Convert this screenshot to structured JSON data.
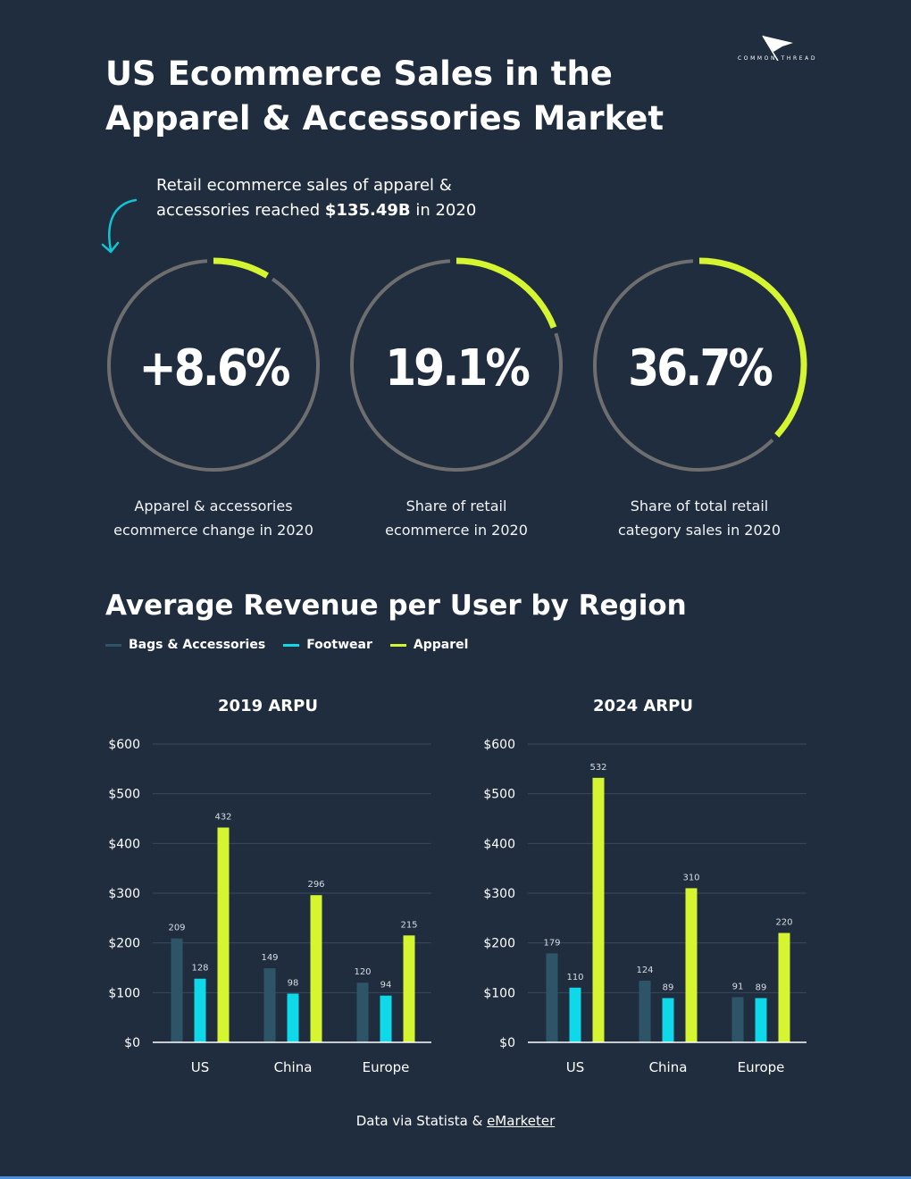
{
  "logo": {
    "text": "COMMON THREAD"
  },
  "title": {
    "line1": "US Ecommerce Sales in the",
    "line2": "Apparel & Accessories Market"
  },
  "intro": {
    "line1": "Retail ecommerce sales of apparel &",
    "line2_prefix": "accessories reached ",
    "line2_amount": "$135.49B",
    "line2_suffix": " in 2020"
  },
  "stats": [
    {
      "value_text": "+8.6%",
      "fraction": 0.086,
      "label_line1": "Apparel & accessories",
      "label_line2": "ecommerce change in 2020"
    },
    {
      "value_text": "19.1%",
      "fraction": 0.191,
      "label_line1": "Share of retail",
      "label_line2": "ecommerce in 2020"
    },
    {
      "value_text": "36.7%",
      "fraction": 0.367,
      "label_line1": "Share of total retail",
      "label_line2": "category sales in 2020"
    }
  ],
  "colors": {
    "background": "#1f2d3f",
    "track": "#6e6e6e",
    "bags": "#2e5468",
    "footwear": "#0fd8e8",
    "apparel": "#d6f531",
    "arrow": "#10c6d6",
    "grid": "#3a4a5c"
  },
  "section": {
    "title": "Average Revenue per User by Region"
  },
  "legend": [
    {
      "label": "Bags & Accessories",
      "color": "#2e5468"
    },
    {
      "label": "Footwear",
      "color": "#0fd8e8"
    },
    {
      "label": "Apparel",
      "color": "#d6f531"
    }
  ],
  "chart_data": [
    {
      "type": "bar",
      "title": "2019 ARPU",
      "categories": [
        "US",
        "China",
        "Europe"
      ],
      "series": [
        {
          "name": "Bags & Accessories",
          "values": [
            209,
            149,
            120
          ]
        },
        {
          "name": "Footwear",
          "values": [
            128,
            98,
            94
          ]
        },
        {
          "name": "Apparel",
          "values": [
            432,
            296,
            215
          ]
        }
      ],
      "ylim": [
        0,
        600
      ],
      "yticks": [
        0,
        100,
        200,
        300,
        400,
        500,
        600
      ],
      "ytick_labels": [
        "$0",
        "$100",
        "$200",
        "$300",
        "$400",
        "$500",
        "$600"
      ],
      "xlabel": "",
      "ylabel": "",
      "grid": true
    },
    {
      "type": "bar",
      "title": "2024 ARPU",
      "categories": [
        "US",
        "China",
        "Europe"
      ],
      "series": [
        {
          "name": "Bags & Accessories",
          "values": [
            179,
            124,
            91
          ]
        },
        {
          "name": "Footwear",
          "values": [
            110,
            89,
            89
          ]
        },
        {
          "name": "Apparel",
          "values": [
            532,
            310,
            220
          ]
        }
      ],
      "ylim": [
        0,
        600
      ],
      "yticks": [
        0,
        100,
        200,
        300,
        400,
        500,
        600
      ],
      "ytick_labels": [
        "$0",
        "$100",
        "$200",
        "$300",
        "$400",
        "$500",
        "$600"
      ],
      "xlabel": "",
      "ylabel": "",
      "grid": true
    }
  ],
  "footer": {
    "prefix": "Data via Statista & ",
    "link": "eMarketer"
  }
}
